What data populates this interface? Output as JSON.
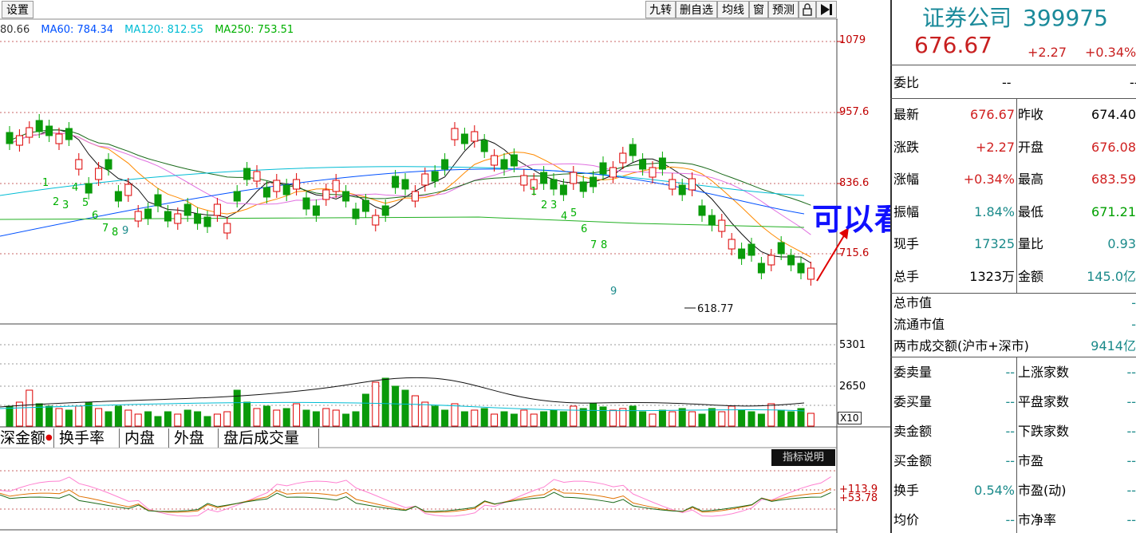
{
  "toolbar": {
    "settings": "设置",
    "buttons": [
      "九转",
      "删自选",
      "均线",
      "窗",
      "预测"
    ],
    "lock_icon": "lock-icon",
    "next_icon": "play-next-icon"
  },
  "ma_legend": [
    {
      "text": "80.66",
      "color": "#333333"
    },
    {
      "text": "MA60: 784.34",
      "color": "#0050ff"
    },
    {
      "text": "MA120: 812.55",
      "color": "#00bcd4"
    },
    {
      "text": "MA250: 753.51",
      "color": "#00b000"
    }
  ],
  "price_axis": [
    "1079",
    "957.6",
    "836.6",
    "715.6"
  ],
  "volume_axis": [
    "5301",
    "2650"
  ],
  "volume_unit": "X10",
  "indicator_axis": [
    "+113.9",
    "+53.78"
  ],
  "low_label": "618.77",
  "nine_turn": {
    "group1": [
      "1",
      "2",
      "3",
      "4",
      "5",
      "6",
      "7",
      "8",
      "9"
    ],
    "group2": [
      "1",
      "2",
      "3",
      "4",
      "5",
      "6",
      "7",
      "8",
      "9"
    ]
  },
  "annotation": "可以看涨",
  "tabs": [
    "深金额",
    "换手率",
    "内盘",
    "外盘",
    "盘后成交量"
  ],
  "indicator_button": "指标说明",
  "stock": {
    "name": "证券公司",
    "code": "399975",
    "price": "676.67",
    "change": "+2.27",
    "change_pct": "+0.34%"
  },
  "weibi": {
    "label": "委比",
    "value1": "--",
    "value2": "--"
  },
  "quote_rows": [
    {
      "l1": "最新",
      "v1": "676.67",
      "c1": "#d02020",
      "l2": "昨收",
      "v2": "674.40",
      "c2": "#000000"
    },
    {
      "l1": "涨跌",
      "v1": "+2.27",
      "c1": "#d02020",
      "l2": "开盘",
      "v2": "676.08",
      "c2": "#d02020"
    },
    {
      "l1": "涨幅",
      "v1": "+0.34%",
      "c1": "#d02020",
      "l2": "最高",
      "v2": "683.59",
      "c2": "#d02020"
    },
    {
      "l1": "振幅",
      "v1": "1.84%",
      "c1": "#1a8a8a",
      "l2": "最低",
      "v2": "671.21",
      "c2": "#00a000"
    },
    {
      "l1": "现手",
      "v1": "17325",
      "c1": "#1a8a8a",
      "l2": "量比",
      "v2": "0.93",
      "c2": "#1a8a8a"
    },
    {
      "l1": "总手",
      "v1": "1323万",
      "c1": "#000000",
      "l2": "金额",
      "v2": "145.0亿",
      "c2": "#1a8a8a"
    }
  ],
  "market_rows": [
    {
      "label": "总市值",
      "value": "-"
    },
    {
      "label": "流通市值",
      "value": "-"
    },
    {
      "label": "两市成交额(沪市+深市)",
      "value": "9414亿"
    }
  ],
  "order_rows": [
    {
      "l1": "委卖量",
      "v1": "--",
      "l2": "上涨家数",
      "v2": "--"
    },
    {
      "l1": "委买量",
      "v1": "--",
      "l2": "平盘家数",
      "v2": "--"
    },
    {
      "l1": "卖金额",
      "v1": "--",
      "l2": "下跌家数",
      "v2": "--"
    },
    {
      "l1": "买金额",
      "v1": "--",
      "l2": "市盈",
      "v2": "--"
    },
    {
      "l1": "换手",
      "v1": "0.54%",
      "l2": "市盈(动)",
      "v2": "--"
    },
    {
      "l1": "均价",
      "v1": "--",
      "l2": "市净率",
      "v2": "--"
    }
  ],
  "colors": {
    "up": "#d00000",
    "down": "#00a000",
    "text_blue": "#1a8a8a",
    "annotation": "#1010ff"
  }
}
